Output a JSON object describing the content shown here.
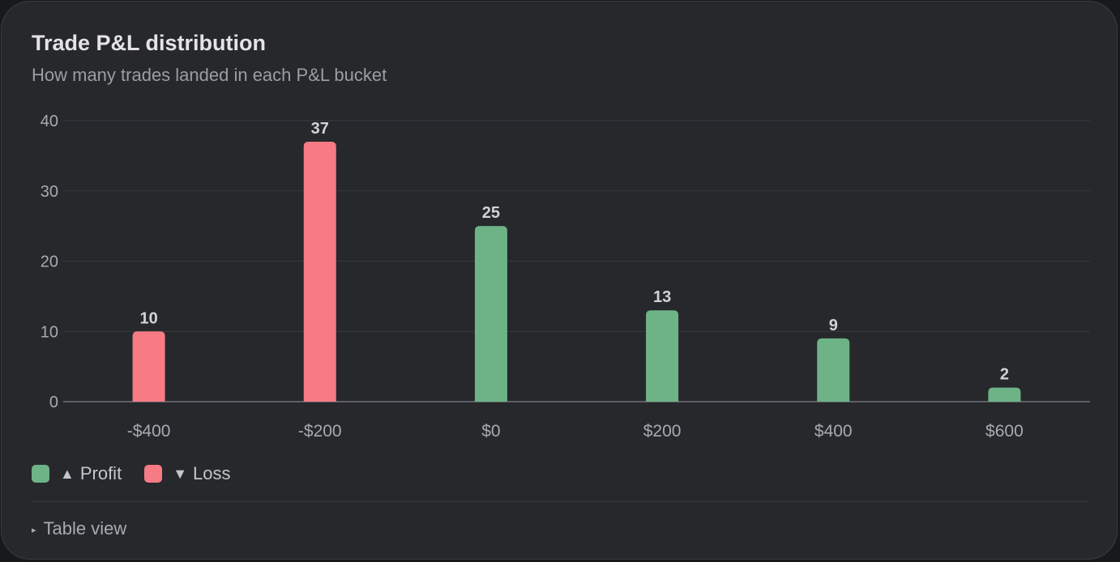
{
  "card": {
    "title": "Trade P&L distribution",
    "subtitle": "How many trades landed in each P&L bucket"
  },
  "chart_data": {
    "type": "bar",
    "categories": [
      "-$400",
      "-$200",
      "$0",
      "$200",
      "$400",
      "$600"
    ],
    "values": [
      10,
      37,
      25,
      13,
      9,
      2
    ],
    "bar_kind": [
      "loss",
      "loss",
      "profit",
      "profit",
      "profit",
      "profit"
    ],
    "ylim": [
      0,
      40
    ],
    "yticks": [
      0,
      10,
      20,
      30,
      40
    ],
    "grid": true,
    "show_data_labels": true,
    "colors": {
      "profit": "#6db386",
      "loss": "#f67b84",
      "grid": "#393a3f",
      "axis": "#5e5f65",
      "tick_text": "#a9aab0",
      "data_label": "#d2d3d7"
    },
    "legend_position": "bottom-left"
  },
  "legend": {
    "items": [
      {
        "key": "profit",
        "label": "Profit",
        "marker": "▲",
        "color": "#6db386"
      },
      {
        "key": "loss",
        "label": "Loss",
        "marker": "▼",
        "color": "#f67b84"
      }
    ]
  },
  "footer": {
    "toggle_icon": "▸",
    "toggle_label": "Table view"
  }
}
